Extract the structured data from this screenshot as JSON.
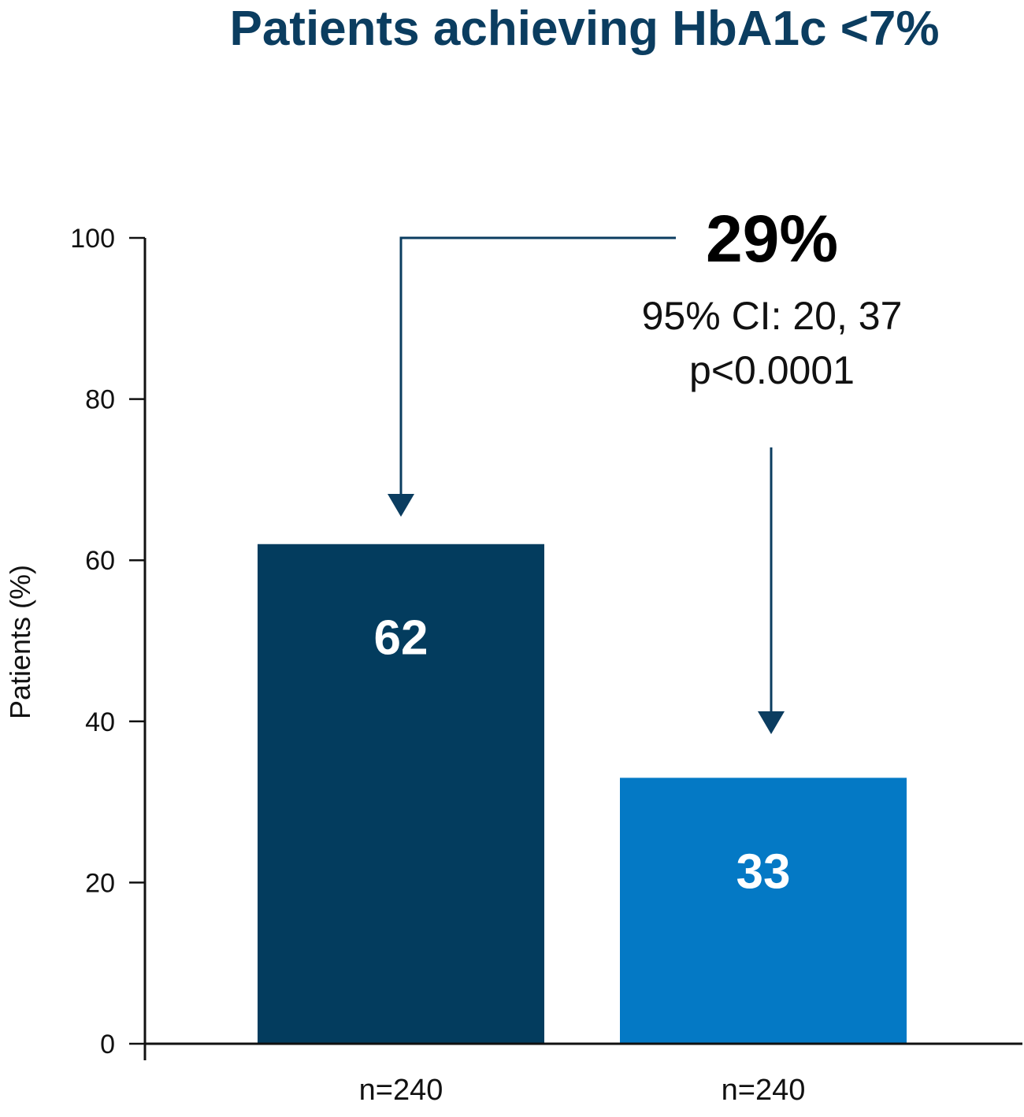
{
  "chart_data": {
    "type": "bar",
    "title": "Patients achieving HbA1c <7%",
    "ylabel": "Patients (%)",
    "xlabel": "",
    "ylim": [
      0,
      100
    ],
    "yticks": [
      0,
      20,
      40,
      60,
      80,
      100
    ],
    "categories": [
      "n=240",
      "n=240"
    ],
    "values": [
      62,
      33
    ],
    "bar_labels": [
      "62",
      "33"
    ],
    "colors": [
      "#033c5e",
      "#0479c5"
    ],
    "annotation": {
      "difference": "29%",
      "ci": "95% CI: 20, 37",
      "p_value": "p<0.0001"
    },
    "grid": false,
    "legend": "none"
  },
  "colors": {
    "title": "#0b3d60",
    "arrow": "#0b3d60",
    "axis": "#111111"
  }
}
